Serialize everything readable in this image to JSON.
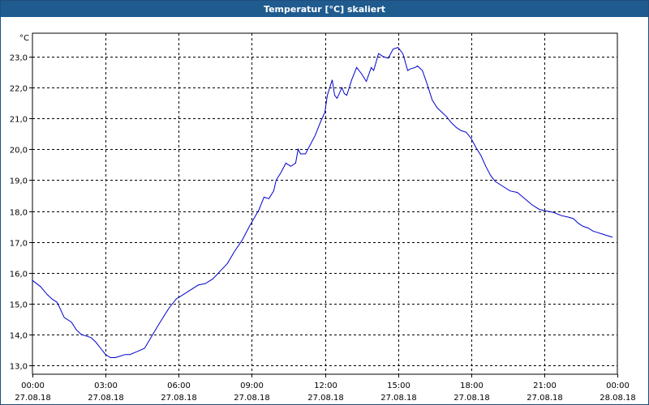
{
  "window": {
    "title": "Temperatur [°C] skaliert"
  },
  "chart_data": {
    "type": "line",
    "title": "Temperatur [°C] skaliert",
    "ylabel": "°C",
    "xlabel": "",
    "grid": true,
    "line_color": "#0000cc",
    "ylim": [
      12.8,
      23.6
    ],
    "xlim": [
      0,
      24
    ],
    "y_ticks": [
      "13,0",
      "14,0",
      "15,0",
      "16,0",
      "17,0",
      "18,0",
      "19,0",
      "20,0",
      "21,0",
      "22,0",
      "23,0"
    ],
    "x_ticks": [
      {
        "time": "00:00",
        "date": "27.08.18"
      },
      {
        "time": "03:00",
        "date": "27.08.18"
      },
      {
        "time": "06:00",
        "date": "27.08.18"
      },
      {
        "time": "09:00",
        "date": "27.08.18"
      },
      {
        "time": "12:00",
        "date": "27.08.18"
      },
      {
        "time": "15:00",
        "date": "27.08.18"
      },
      {
        "time": "18:00",
        "date": "27.08.18"
      },
      {
        "time": "21:00",
        "date": "27.08.18"
      },
      {
        "time": "00:00",
        "date": "28.08.18"
      }
    ],
    "series": [
      {
        "x": [
          0.0,
          0.33,
          0.6,
          0.8,
          1.0,
          1.1,
          1.3,
          1.6,
          1.8,
          2.0,
          2.2,
          2.4,
          2.6,
          2.8,
          3.0,
          3.2,
          3.4,
          3.6,
          3.8,
          4.0,
          4.3,
          4.6,
          4.9,
          5.2,
          5.6,
          5.9,
          6.2,
          6.5,
          6.8,
          7.1,
          7.4,
          7.7,
          8.0,
          8.3,
          8.6,
          8.9,
          9.3,
          9.5,
          9.7,
          9.9,
          10.0,
          10.2,
          10.4,
          10.6,
          10.8,
          10.9,
          11.0,
          11.2,
          11.4,
          11.6,
          11.8,
          12.0,
          12.1,
          12.3,
          12.4,
          12.5,
          12.7,
          12.8,
          12.9,
          13.1,
          13.3,
          13.5,
          13.7,
          13.9,
          14.0,
          14.2,
          14.4,
          14.6,
          14.8,
          15.0,
          15.2,
          15.4,
          15.5,
          15.7,
          15.8,
          16.0,
          16.2,
          16.4,
          16.6,
          16.8,
          17.0,
          17.2,
          17.4,
          17.6,
          17.8,
          18.0,
          18.2,
          18.4,
          18.6,
          18.8,
          19.0,
          19.3,
          19.6,
          19.9,
          20.2,
          20.5,
          20.8,
          21.1,
          21.4,
          21.7,
          22.0,
          22.2,
          22.4,
          22.6,
          22.8,
          23.0,
          23.2,
          23.4,
          23.6,
          23.8
        ],
        "y": [
          15.75,
          15.55,
          15.3,
          15.15,
          15.05,
          14.9,
          14.55,
          14.4,
          14.15,
          14.0,
          13.95,
          13.9,
          13.75,
          13.55,
          13.35,
          13.25,
          13.25,
          13.3,
          13.35,
          13.35,
          13.45,
          13.55,
          13.95,
          14.35,
          14.85,
          15.15,
          15.3,
          15.45,
          15.6,
          15.65,
          15.8,
          16.05,
          16.3,
          16.7,
          17.05,
          17.5,
          18.05,
          18.45,
          18.4,
          18.65,
          19.0,
          19.25,
          19.55,
          19.45,
          19.55,
          20.0,
          19.85,
          19.85,
          20.15,
          20.45,
          20.85,
          21.2,
          21.75,
          22.25,
          21.75,
          21.65,
          22.0,
          21.8,
          21.75,
          22.25,
          22.65,
          22.45,
          22.2,
          22.65,
          22.55,
          23.1,
          23.0,
          22.95,
          23.25,
          23.3,
          23.1,
          22.55,
          22.6,
          22.65,
          22.7,
          22.55,
          22.1,
          21.6,
          21.35,
          21.2,
          21.05,
          20.85,
          20.7,
          20.6,
          20.55,
          20.35,
          20.05,
          19.8,
          19.45,
          19.15,
          18.95,
          18.8,
          18.65,
          18.6,
          18.4,
          18.2,
          18.05,
          18.0,
          17.95,
          17.85,
          17.8,
          17.75,
          17.6,
          17.5,
          17.45,
          17.35,
          17.3,
          17.25,
          17.2,
          17.15
        ]
      }
    ]
  }
}
